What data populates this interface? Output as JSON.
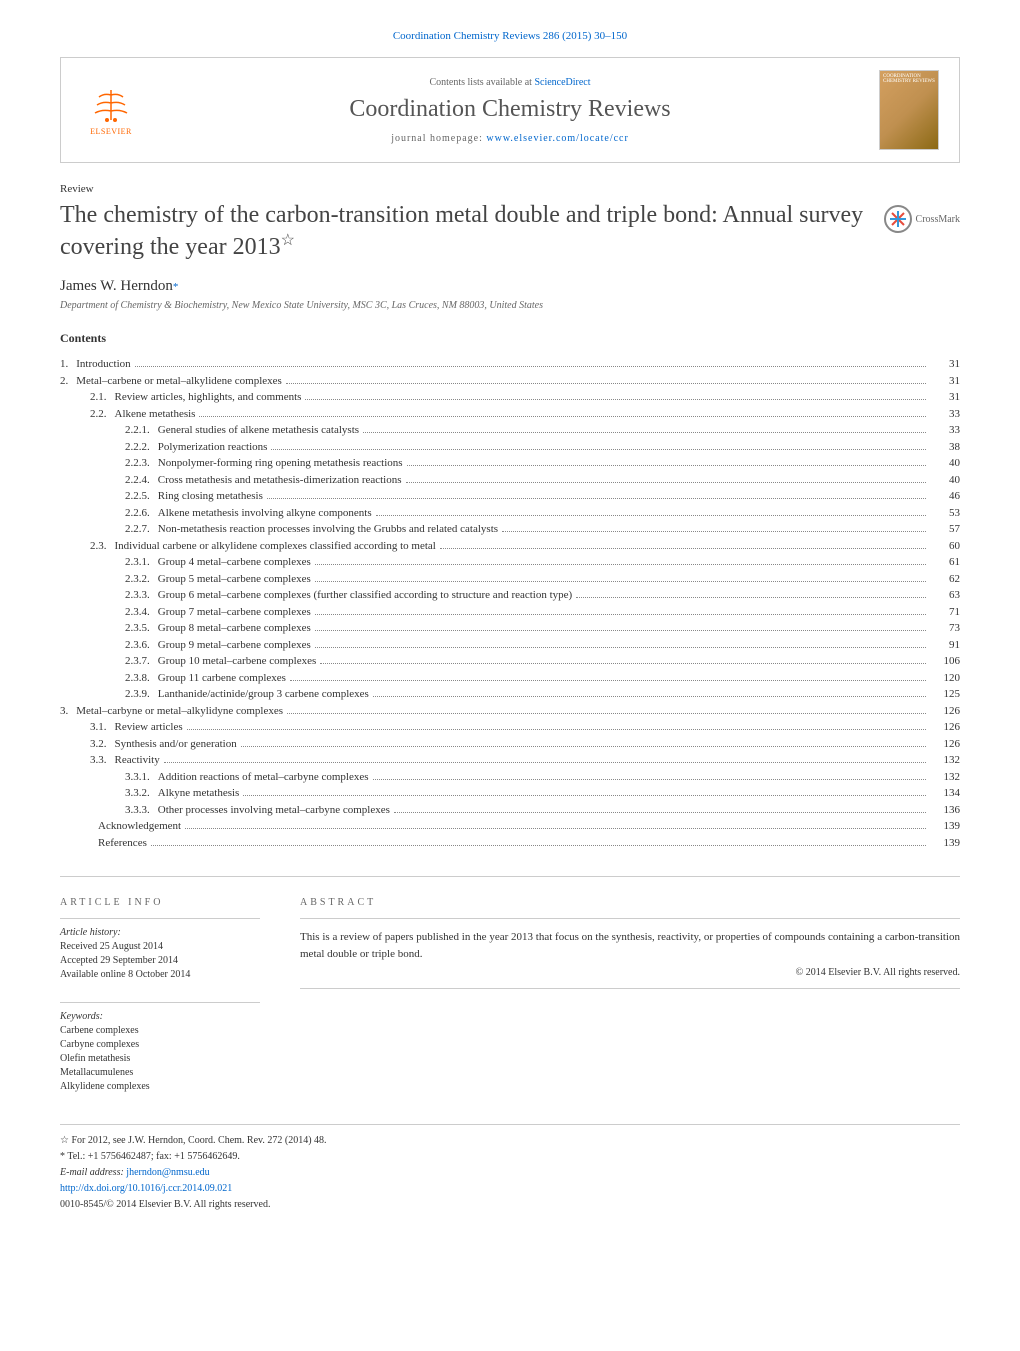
{
  "citation": "Coordination Chemistry Reviews 286 (2015) 30–150",
  "journal_box": {
    "contents_prefix": "Contents lists available at ",
    "contents_link": "ScienceDirect",
    "journal_name": "Coordination Chemistry Reviews",
    "homepage_prefix": "journal homepage: ",
    "homepage_link": "www.elsevier.com/locate/ccr",
    "elsevier_label": "ELSEVIER",
    "cover_text": "COORDINATION CHEMISTRY REVIEWS"
  },
  "review_label": "Review",
  "title": "The chemistry of the carbon-transition metal double and triple bond: Annual survey covering the year 2013",
  "title_star": "☆",
  "crossmark_label": "CrossMark",
  "author": "James W. Herndon",
  "author_marker": "*",
  "affiliation": "Department of Chemistry & Biochemistry, New Mexico State University, MSC 3C, Las Cruces, NM 88003, United States",
  "contents_heading": "Contents",
  "toc": [
    {
      "num": "1.",
      "label": "Introduction",
      "page": "31",
      "indent": 0
    },
    {
      "num": "2.",
      "label": "Metal–carbene or metal–alkylidene complexes",
      "page": "31",
      "indent": 0
    },
    {
      "num": "2.1.",
      "label": "Review articles, highlights, and comments",
      "page": "31",
      "indent": 1
    },
    {
      "num": "2.2.",
      "label": "Alkene metathesis",
      "page": "33",
      "indent": 1
    },
    {
      "num": "2.2.1.",
      "label": "General studies of alkene metathesis catalysts",
      "page": "33",
      "indent": 2
    },
    {
      "num": "2.2.2.",
      "label": "Polymerization reactions",
      "page": "38",
      "indent": 2
    },
    {
      "num": "2.2.3.",
      "label": "Nonpolymer-forming ring opening metathesis reactions",
      "page": "40",
      "indent": 2
    },
    {
      "num": "2.2.4.",
      "label": "Cross metathesis and metathesis-dimerization reactions",
      "page": "40",
      "indent": 2
    },
    {
      "num": "2.2.5.",
      "label": "Ring closing metathesis",
      "page": "46",
      "indent": 2
    },
    {
      "num": "2.2.6.",
      "label": "Alkene metathesis involving alkyne components",
      "page": "53",
      "indent": 2
    },
    {
      "num": "2.2.7.",
      "label": "Non-metathesis reaction processes involving the Grubbs and related catalysts",
      "page": "57",
      "indent": 2
    },
    {
      "num": "2.3.",
      "label": "Individual carbene or alkylidene complexes classified according to metal",
      "page": "60",
      "indent": 1
    },
    {
      "num": "2.3.1.",
      "label": "Group 4 metal–carbene complexes",
      "page": "61",
      "indent": 2
    },
    {
      "num": "2.3.2.",
      "label": "Group 5 metal–carbene complexes",
      "page": "62",
      "indent": 2
    },
    {
      "num": "2.3.3.",
      "label": "Group 6 metal–carbene complexes (further classified according to structure and reaction type)",
      "page": "63",
      "indent": 2
    },
    {
      "num": "2.3.4.",
      "label": "Group 7 metal–carbene complexes",
      "page": "71",
      "indent": 2
    },
    {
      "num": "2.3.5.",
      "label": "Group 8 metal–carbene complexes",
      "page": "73",
      "indent": 2
    },
    {
      "num": "2.3.6.",
      "label": "Group 9 metal–carbene complexes",
      "page": "91",
      "indent": 2
    },
    {
      "num": "2.3.7.",
      "label": "Group 10 metal–carbene complexes",
      "page": "106",
      "indent": 2
    },
    {
      "num": "2.3.8.",
      "label": "Group 11 carbene complexes",
      "page": "120",
      "indent": 2
    },
    {
      "num": "2.3.9.",
      "label": "Lanthanide/actinide/group 3 carbene complexes",
      "page": "125",
      "indent": 2
    },
    {
      "num": "3.",
      "label": "Metal–carbyne or metal–alkylidyne complexes",
      "page": "126",
      "indent": 0
    },
    {
      "num": "3.1.",
      "label": "Review articles",
      "page": "126",
      "indent": 1
    },
    {
      "num": "3.2.",
      "label": "Synthesis and/or generation",
      "page": "126",
      "indent": 1
    },
    {
      "num": "3.3.",
      "label": "Reactivity",
      "page": "132",
      "indent": 1
    },
    {
      "num": "3.3.1.",
      "label": "Addition reactions of metal–carbyne complexes",
      "page": "132",
      "indent": 2
    },
    {
      "num": "3.3.2.",
      "label": "Alkyne metathesis",
      "page": "134",
      "indent": 2
    },
    {
      "num": "3.3.3.",
      "label": "Other processes involving metal–carbyne complexes",
      "page": "136",
      "indent": 2
    },
    {
      "num": "",
      "label": "Acknowledgement",
      "page": "139",
      "indent": 1
    },
    {
      "num": "",
      "label": "References",
      "page": "139",
      "indent": 1
    }
  ],
  "article_info_heading": "ARTICLE INFO",
  "history": {
    "label": "Article history:",
    "items": [
      "Received 25 August 2014",
      "Accepted 29 September 2014",
      "Available online 8 October 2014"
    ]
  },
  "keywords": {
    "label": "Keywords:",
    "items": [
      "Carbene complexes",
      "Carbyne complexes",
      "Olefin metathesis",
      "Metallacumulenes",
      "Alkylidene complexes"
    ]
  },
  "abstract_heading": "ABSTRACT",
  "abstract_text": "This is a review of papers published in the year 2013 that focus on the synthesis, reactivity, or properties of compounds containing a carbon-transition metal double or triple bond.",
  "copyright": "© 2014 Elsevier B.V. All rights reserved.",
  "footnotes": {
    "star_note": "☆ For 2012, see J.W. Herndon, Coord. Chem. Rev. 272 (2014) 48.",
    "corr": "* Tel.: +1 5756462487; fax: +1 5756462649.",
    "email_label": "E-mail address: ",
    "email": "jherndon@nmsu.edu",
    "doi": "http://dx.doi.org/10.1016/j.ccr.2014.09.021",
    "issn": "0010-8545/© 2014 Elsevier B.V. All rights reserved."
  },
  "colors": {
    "link": "#0066cc",
    "elsevier_orange": "#ff6600",
    "text": "#333333",
    "muted": "#666666",
    "border": "#cccccc"
  }
}
